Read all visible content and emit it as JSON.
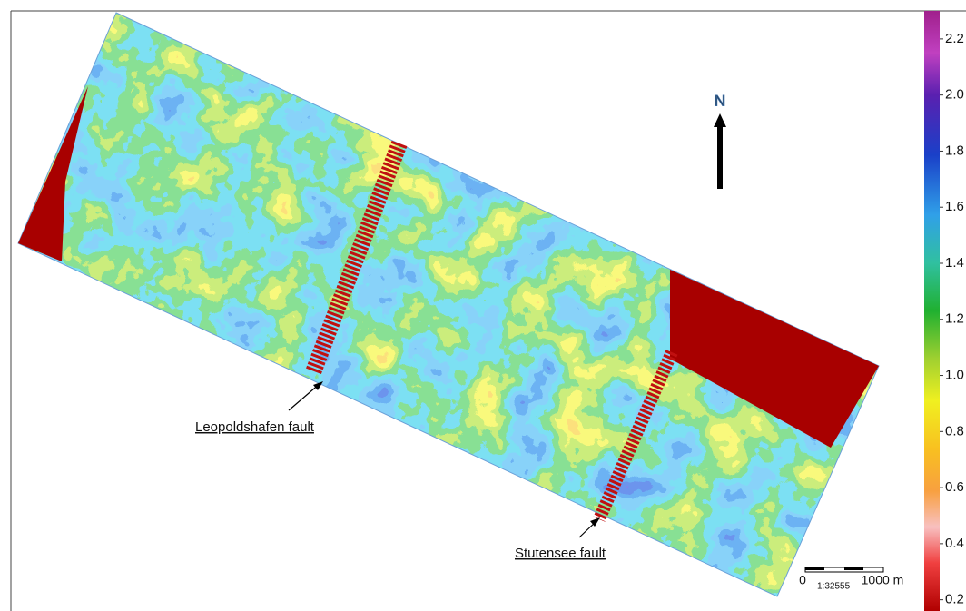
{
  "map": {
    "north_label": "N",
    "annotations": [
      "Leopoldshafen fault",
      "Stutensee fault"
    ],
    "scale_bar": {
      "start": "0",
      "ratio": "1:32555",
      "end": "1000 m"
    },
    "colorbar": {
      "lim": [
        0.16,
        2.3
      ],
      "ticks": [
        2.2,
        {
          "value": 2,
          "label": "2.0"
        },
        1.8,
        1.6,
        1.4,
        1.2,
        {
          "value": 1,
          "label": "1.0"
        },
        0.8,
        0.6,
        0.4,
        0.2
      ]
    }
  }
}
